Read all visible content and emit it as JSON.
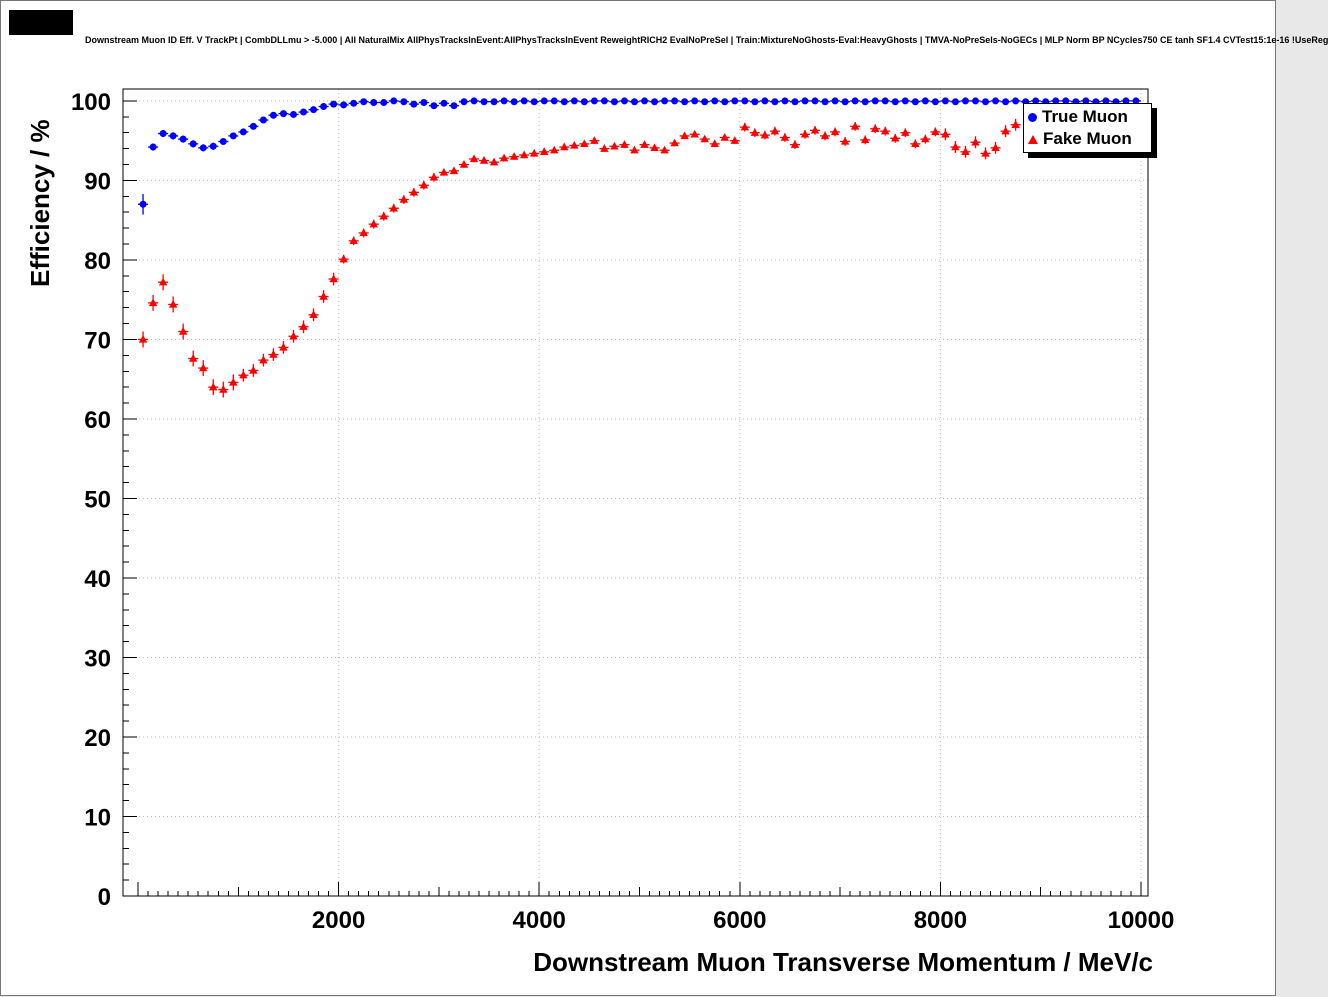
{
  "header": {
    "title": "Downstream Muon ID Eff. V TrackPt | CombDLLmu > -5.000 | All NaturalMix AllPhysTracksInEvent:AllPhysTracksInEvent ReweightRICH2 EvalNoPreSel | Train:MixtureNoGhosts-Eval:HeavyGhosts | TMVA-NoPreSels-NoGECs | MLP Norm BP NCycles750 CE tanh SF1.4 CVTest15:1e-16 !UseReg"
  },
  "chart_data": {
    "type": "scatter",
    "title": "Downstream Muon ID Eff. V TrackPt | CombDLLmu > -5.000 | All NaturalMix AllPhysTracksInEvent:AllPhysTracksInEvent ReweightRICH2 EvalNoPreSel | Train:MixtureNoGhosts-Eval:HeavyGhosts | TMVA-NoPreSels-NoGECs | MLP Norm BP NCycles750 CE tanh SF1.4 CVTest15:1e-16 !UseReg",
    "xlabel": "Downstream Muon Transverse Momentum / MeV/c",
    "ylabel": "Efficiency / %",
    "xlim": [
      -150,
      10070
    ],
    "ylim": [
      0,
      101.5
    ],
    "xticks": [
      2000,
      4000,
      6000,
      8000,
      10000
    ],
    "yticks": [
      0,
      10,
      20,
      30,
      40,
      50,
      60,
      70,
      80,
      90,
      100
    ],
    "x_minor_step": 100,
    "y_minor_step": 2,
    "grid": true,
    "grid_color": "#bbbbbb",
    "legend_position": "top-right",
    "x_start": 50,
    "x_step": 100,
    "xerr": 50,
    "series": [
      {
        "name": "True Muon",
        "marker": "circle",
        "color": "#0000ff",
        "values": [
          87.0,
          94.2,
          95.9,
          95.6,
          95.2,
          94.6,
          94.1,
          94.3,
          94.9,
          95.6,
          96.1,
          96.8,
          97.6,
          98.2,
          98.4,
          98.3,
          98.6,
          98.9,
          99.3,
          99.6,
          99.5,
          99.7,
          99.9,
          99.8,
          99.8,
          100,
          99.9,
          99.6,
          99.8,
          99.4,
          99.7,
          99.4,
          99.9,
          100,
          99.9,
          99.9,
          100,
          99.9,
          100,
          99.9,
          100,
          100,
          99.9,
          100,
          99.9,
          100,
          100,
          99.9,
          100,
          99.9,
          100,
          99.9,
          100,
          100,
          99.9,
          100,
          99.9,
          100,
          99.9,
          100,
          100,
          99.9,
          100,
          99.9,
          100,
          99.9,
          100,
          100,
          99.9,
          100,
          99.9,
          100,
          99.9,
          100,
          100,
          99.9,
          100,
          99.9,
          100,
          99.9,
          100,
          99.9,
          100,
          100,
          99.9,
          100,
          99.9,
          100,
          99.9,
          100,
          99.9,
          100,
          100,
          99.9,
          100,
          99.9,
          100,
          99.9,
          100,
          100
        ],
        "yerr_segments": [
          [
            0,
            1.3
          ],
          [
            1,
            0.45
          ],
          [
            8,
            0.35
          ],
          [
            12,
            0.22
          ],
          [
            18,
            0.12
          ],
          [
            25,
            0.06
          ]
        ]
      },
      {
        "name": "Fake Muon",
        "marker": "triangle",
        "color": "#ff0000",
        "values": [
          70.0,
          74.6,
          77.2,
          74.4,
          71.0,
          67.6,
          66.4,
          64.0,
          63.7,
          64.6,
          65.5,
          66.1,
          67.4,
          68.1,
          69.0,
          70.4,
          71.6,
          73.1,
          75.4,
          77.6,
          80.1,
          82.4,
          83.4,
          84.5,
          85.5,
          86.5,
          87.6,
          88.5,
          89.4,
          90.4,
          91.0,
          91.2,
          92.0,
          92.7,
          92.5,
          92.3,
          92.8,
          93.0,
          93.2,
          93.4,
          93.6,
          93.8,
          94.2,
          94.4,
          94.6,
          95.0,
          94.0,
          94.3,
          94.5,
          93.8,
          94.5,
          94.1,
          93.8,
          94.7,
          95.6,
          95.8,
          95.2,
          94.6,
          95.4,
          95.0,
          96.7,
          96.0,
          95.7,
          96.2,
          95.4,
          94.5,
          95.8,
          96.3,
          95.6,
          96.1,
          94.9,
          96.8,
          95.1,
          96.5,
          96.2,
          95.3,
          96.0,
          94.6,
          95.2,
          96.1,
          95.8,
          94.2,
          93.6,
          94.8,
          93.4,
          94.1,
          96.2,
          97.0
        ],
        "yerr_segments": [
          [
            0,
            1.0
          ],
          [
            10,
            0.8
          ],
          [
            20,
            0.55
          ],
          [
            30,
            0.4
          ],
          [
            60,
            0.55
          ],
          [
            80,
            0.75
          ]
        ]
      }
    ]
  }
}
